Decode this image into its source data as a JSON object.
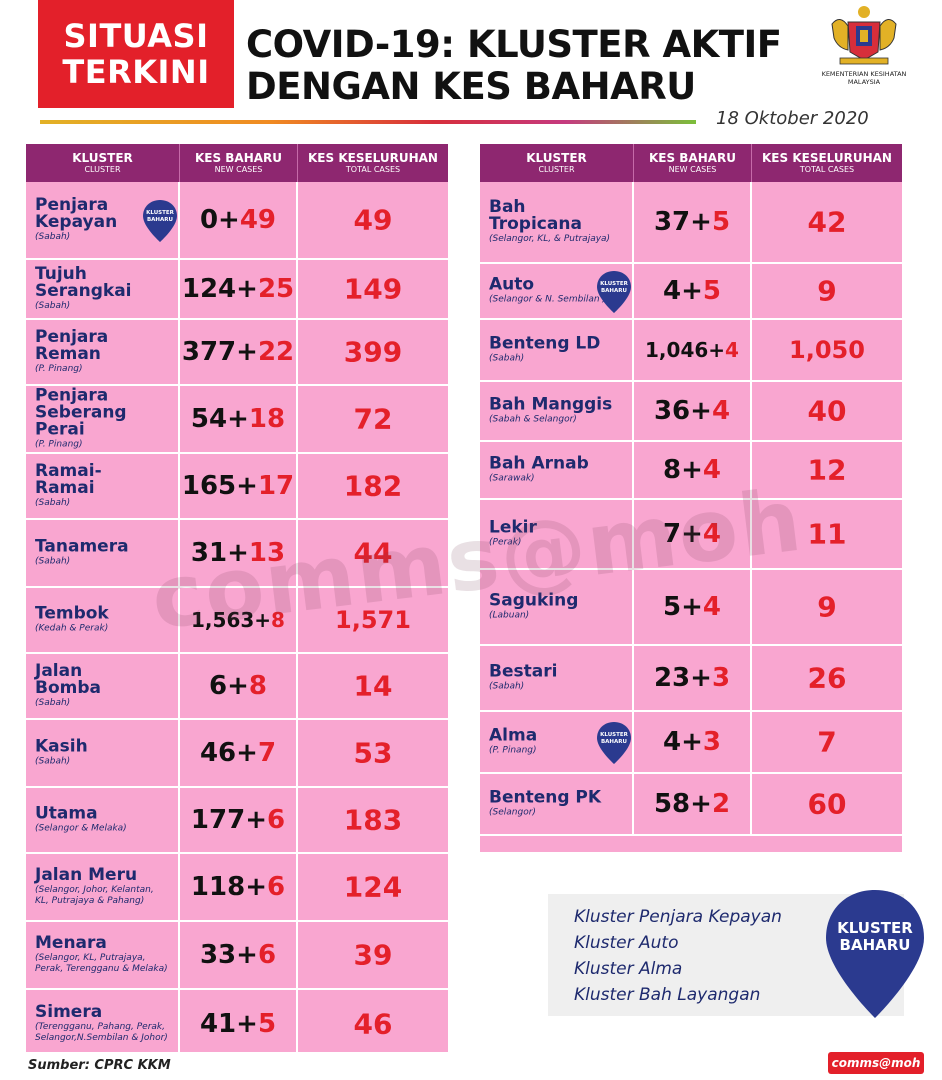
{
  "header": {
    "badge_line1": "SITUASI",
    "badge_line2": "TERKINI",
    "title_line1": "COVID-19: KLUSTER AKTIF",
    "title_line2": "DENGAN KES BAHARU",
    "ministry_line1": "KEMENTERIAN KESIHATAN",
    "ministry_line2": "MALAYSIA",
    "date": "18 Oktober 2020"
  },
  "table_headers": {
    "cluster": "KLUSTER",
    "cluster_sub": "CLUSTER",
    "new": "KES BAHARU",
    "new_sub": "NEW CASES",
    "total": "KES KESELURUHAN",
    "total_sub": "TOTAL CASES"
  },
  "pin_label": "KLUSTER BAHARU",
  "left_rows": [
    {
      "name": "Penjara\nKepayan",
      "location": "(Sabah)",
      "base": "0+",
      "added": "49",
      "total": "49",
      "is_new": true
    },
    {
      "name": "Tujuh\nSerangkai",
      "location": "(Sabah)",
      "base": "124+",
      "added": "25",
      "total": "149",
      "is_new": false
    },
    {
      "name": "Penjara\nReman",
      "location": "(P. Pinang)",
      "base": "377+",
      "added": "22",
      "total": "399",
      "is_new": false
    },
    {
      "name": "Penjara\nSeberang Perai",
      "location": "(P. Pinang)",
      "base": "54+",
      "added": "18",
      "total": "72",
      "is_new": false
    },
    {
      "name": "Ramai-\nRamai",
      "location": "(Sabah)",
      "base": "165+",
      "added": "17",
      "total": "182",
      "is_new": false
    },
    {
      "name": "Tanamera",
      "location": "(Sabah)",
      "base": "31+",
      "added": "13",
      "total": "44",
      "is_new": false
    },
    {
      "name": "Tembok",
      "location": "(Kedah & Perak)",
      "base": "1,563+",
      "added": "8",
      "total": "1,571",
      "is_new": false
    },
    {
      "name": "Jalan\nBomba",
      "location": "(Sabah)",
      "base": "6+",
      "added": "8",
      "total": "14",
      "is_new": false
    },
    {
      "name": "Kasih",
      "location": "(Sabah)",
      "base": "46+",
      "added": "7",
      "total": "53",
      "is_new": false
    },
    {
      "name": "Utama",
      "location": "(Selangor & Melaka)",
      "base": "177+",
      "added": "6",
      "total": "183",
      "is_new": false
    },
    {
      "name": "Jalan Meru",
      "location": "(Selangor, Johor, Kelantan,\nKL, Putrajaya & Pahang)",
      "base": "118+",
      "added": "6",
      "total": "124",
      "is_new": false
    },
    {
      "name": "Menara",
      "location": "(Selangor, KL, Putrajaya,\nPerak, Terengganu & Melaka)",
      "base": "33+",
      "added": "6",
      "total": "39",
      "is_new": false
    },
    {
      "name": "Simera",
      "location": "(Terengganu, Pahang, Perak,\nSelangor,N.Sembilan & Johor)",
      "base": "41+",
      "added": "5",
      "total": "46",
      "is_new": false
    }
  ],
  "right_rows": [
    {
      "name": "Bah\nTropicana",
      "location": "(Selangor, KL, & Putrajaya)",
      "base": "37+",
      "added": "5",
      "total": "42",
      "is_new": false
    },
    {
      "name": "Auto",
      "location": "(Selangor & N. Sembilan )",
      "base": "4+",
      "added": "5",
      "total": "9",
      "is_new": true
    },
    {
      "name": "Benteng LD",
      "location": "(Sabah)",
      "base": "1,046+",
      "added": "4",
      "total": "1,050",
      "is_new": false
    },
    {
      "name": "Bah Manggis",
      "location": "(Sabah & Selangor)",
      "base": "36+",
      "added": "4",
      "total": "40",
      "is_new": false
    },
    {
      "name": "Bah Arnab",
      "location": "(Sarawak)",
      "base": "8+",
      "added": "4",
      "total": "12",
      "is_new": false
    },
    {
      "name": "Lekir",
      "location": "(Perak)",
      "base": "7+",
      "added": "4",
      "total": "11",
      "is_new": false
    },
    {
      "name": "Saguking",
      "location": "(Labuan)",
      "base": "5+",
      "added": "4",
      "total": "9",
      "is_new": false
    },
    {
      "name": "Bestari",
      "location": "(Sabah)",
      "base": "23+",
      "added": "3",
      "total": "26",
      "is_new": false
    },
    {
      "name": "Alma",
      "location": "(P. Pinang)",
      "base": "4+",
      "added": "3",
      "total": "7",
      "is_new": true
    },
    {
      "name": "Benteng PK",
      "location": "(Selangor)",
      "base": "58+",
      "added": "2",
      "total": "60",
      "is_new": false
    }
  ],
  "legend": {
    "items": [
      "Kluster Penjara Kepayan",
      "Kluster Auto",
      "Kluster Alma",
      "Kluster Bah Layangan"
    ],
    "pin_line1": "KLUSTER",
    "pin_line2": "BAHARU"
  },
  "watermark": "comms@moh",
  "source": "Sumber: CPRC KKM",
  "footer_tag": "comms@moh",
  "colors": {
    "badge_red": "#e3202a",
    "header_purple": "#8e2770",
    "row_pink": "#f9a6d0",
    "text_navy": "#1e2a6e",
    "accent_red": "#e4202a",
    "pin_navy": "#2b3a8f"
  }
}
